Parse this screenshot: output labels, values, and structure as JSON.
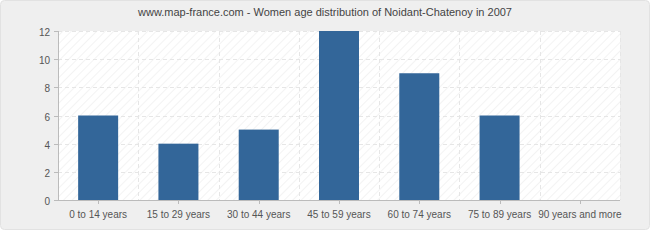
{
  "chart_data": {
    "type": "bar",
    "title": "www.map-france.com - Women age distribution of Noidant-Chatenoy in 2007",
    "categories": [
      "0 to 14 years",
      "15 to 29 years",
      "30 to 44 years",
      "45 to 59 years",
      "60 to 74 years",
      "75 to 89 years",
      "90 years and more"
    ],
    "values": [
      6,
      4,
      5,
      12,
      9,
      6,
      0
    ],
    "color": "#336699",
    "ylim": [
      0,
      12
    ],
    "yticks": [
      0,
      2,
      4,
      6,
      8,
      10,
      12
    ],
    "grid": true
  }
}
